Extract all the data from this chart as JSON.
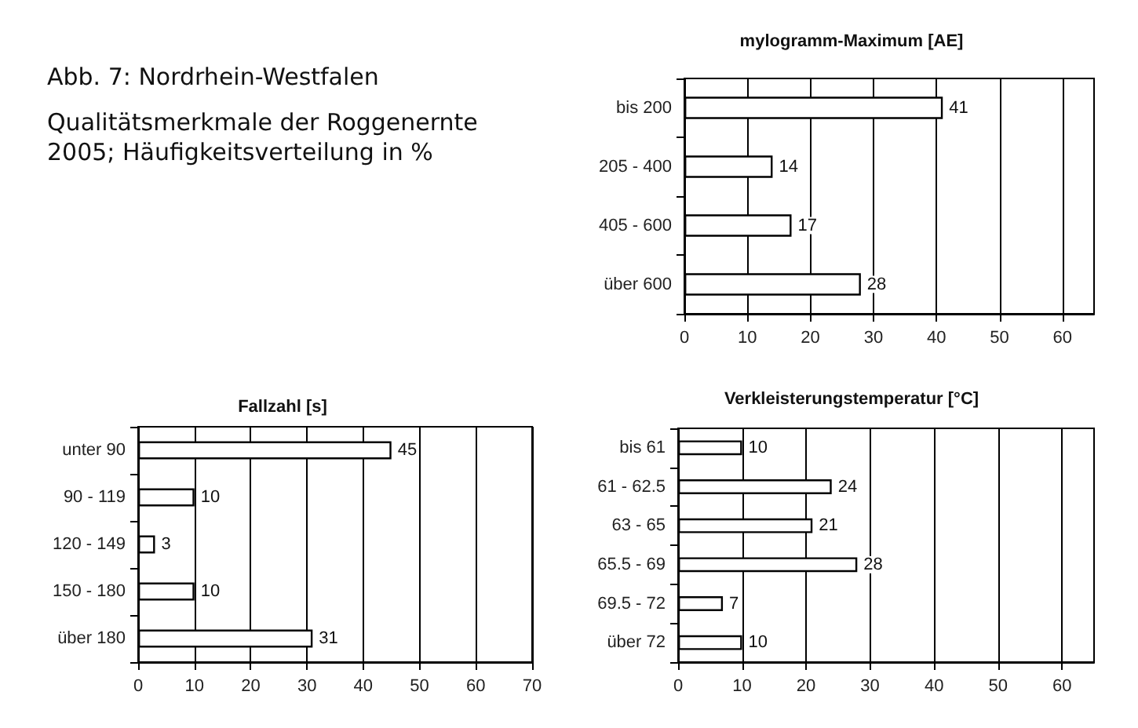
{
  "chart_data": [
    {
      "type": "other",
      "title": "Abb. 7: Nordrhein-Westfalen",
      "subtitle": "Qualitätsmerkmale der Roggenernte 2005; Häufigkeitsverteilung in %"
    },
    {
      "type": "bar",
      "orientation": "horizontal",
      "title": "mylogramm-Maximum [AE]",
      "categories": [
        "bis 200",
        "205 - 400",
        "405 - 600",
        "über 600"
      ],
      "values": [
        41,
        14,
        17,
        28
      ],
      "color": "#ffffff",
      "xlim": [
        0,
        65
      ],
      "xticks": [
        0,
        10,
        20,
        30,
        40,
        50,
        60
      ],
      "grid": "x",
      "data_labels": true
    },
    {
      "type": "bar",
      "orientation": "horizontal",
      "title": "Fallzahl [s]",
      "categories": [
        "unter 90",
        "90 - 119",
        "120 - 149",
        "150 - 180",
        "über 180"
      ],
      "values": [
        45,
        10,
        3,
        10,
        31
      ],
      "color": "#ffffff",
      "xlim": [
        0,
        70
      ],
      "xticks": [
        0,
        10,
        20,
        30,
        40,
        50,
        60,
        70
      ],
      "grid": "x",
      "data_labels": true
    },
    {
      "type": "bar",
      "orientation": "horizontal",
      "title": "Verkleisterungstemperatur [°C]",
      "categories": [
        "bis 61",
        "61 - 62.5",
        "63 - 65",
        "65.5 - 69",
        "69.5 - 72",
        "über 72"
      ],
      "values": [
        10,
        24,
        21,
        28,
        7,
        10
      ],
      "color": "#ffffff",
      "xlim": [
        0,
        65
      ],
      "xticks": [
        0,
        10,
        20,
        30,
        40,
        50,
        60
      ],
      "grid": "x",
      "data_labels": true
    }
  ]
}
